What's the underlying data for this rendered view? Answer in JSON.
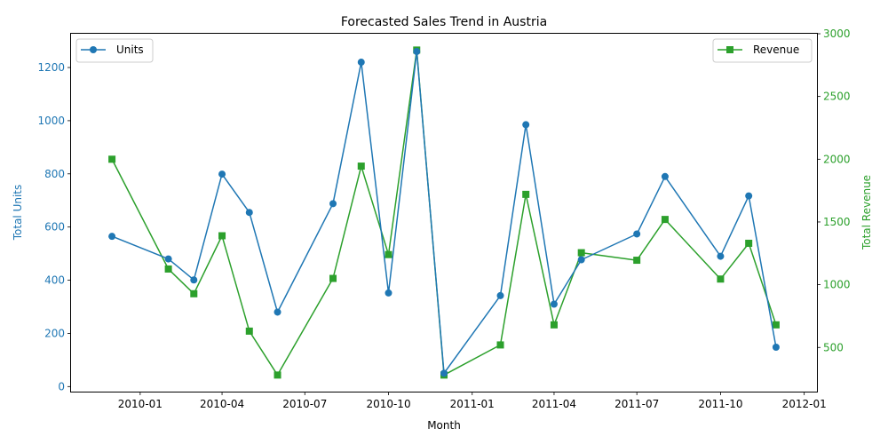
{
  "chart_data": {
    "type": "line",
    "title": "Forecasted Sales Trend in Austria",
    "xlabel": "Month",
    "ylabel_left": "Total Units",
    "ylabel_right": "Total Revenue",
    "x_ticks": [
      "2010-01",
      "2010-04",
      "2010-07",
      "2010-10",
      "2011-01",
      "2011-04",
      "2011-07",
      "2011-10",
      "2012-01"
    ],
    "y_left_ticks": [
      "0",
      "200",
      "400",
      "600",
      "800",
      "1000",
      "1200"
    ],
    "y_right_ticks": [
      "500",
      "1000",
      "1500",
      "2000",
      "2500",
      "3000"
    ],
    "ylim_left": [
      -19,
      1327
    ],
    "ylim_right": [
      148,
      3000
    ],
    "x": [
      "2009-12",
      "2010-02",
      "2010-03",
      "2010-04",
      "2010-05",
      "2010-06",
      "2010-08",
      "2010-09",
      "2010-10",
      "2010-11",
      "2010-12",
      "2011-02",
      "2011-03",
      "2011-04",
      "2011-05",
      "2011-07",
      "2011-08",
      "2011-10",
      "2011-11",
      "2011-12"
    ],
    "series": [
      {
        "name": "Units",
        "axis": "left",
        "color": "#1f77b4",
        "marker": "circle",
        "values": [
          565,
          480,
          401,
          799,
          655,
          280,
          688,
          1220,
          352,
          1260,
          50,
          342,
          985,
          310,
          477,
          574,
          790,
          490,
          717,
          148
        ]
      },
      {
        "name": "Revenue",
        "axis": "right",
        "color": "#2ca02c",
        "marker": "square",
        "values": [
          2000,
          1125,
          928,
          1390,
          630,
          280,
          1050,
          1945,
          1240,
          2870,
          280,
          520,
          1720,
          680,
          1255,
          1195,
          1520,
          1045,
          1330,
          680
        ]
      }
    ],
    "legend_left": "top-left",
    "legend_right": "top-right",
    "grid": false
  }
}
